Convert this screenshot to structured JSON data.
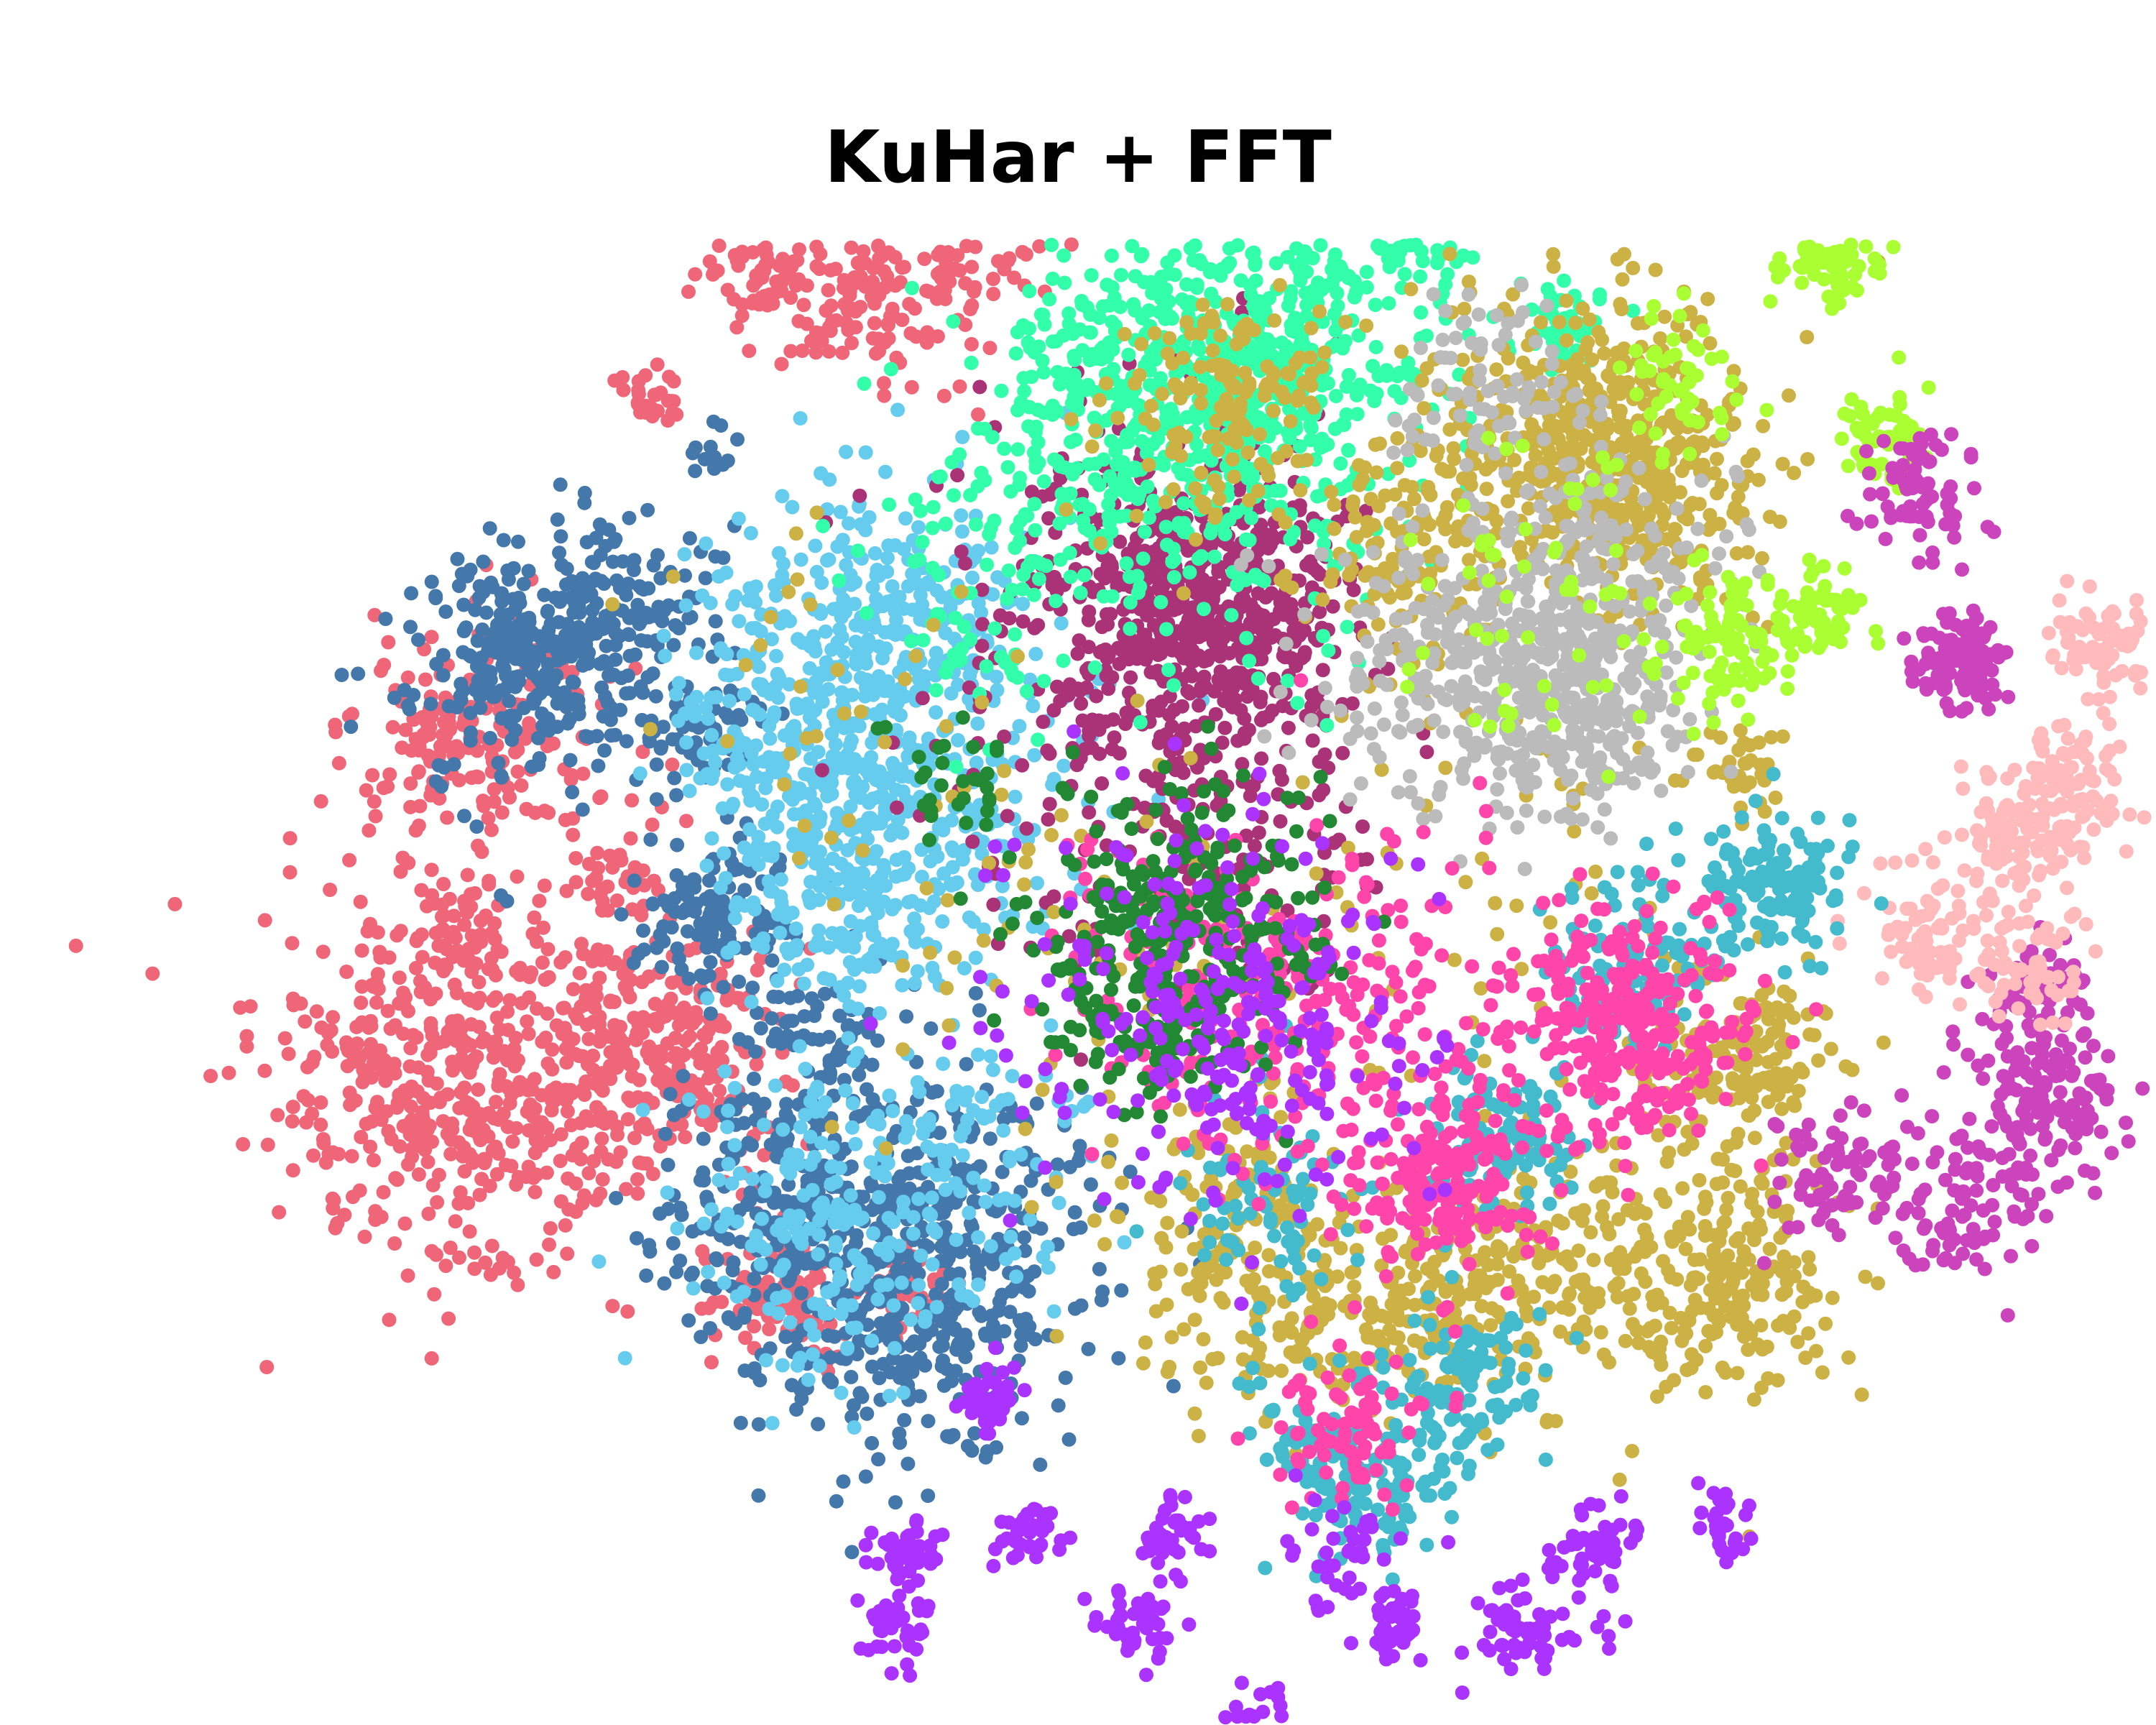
{
  "chart_data": {
    "type": "scatter",
    "title": "KuHar + FFT",
    "xlabel": "",
    "ylabel": "",
    "axes_visible": false,
    "grid": false,
    "legend": "none",
    "series": [
      {
        "color": "#EE6677",
        "clusters": [
          [
            -53,
            8,
            6,
            180
          ],
          [
            -56,
            -20,
            8,
            520
          ],
          [
            -38,
            -17,
            5,
            260
          ],
          [
            -20,
            47,
            4,
            120
          ],
          [
            -30,
            50,
            3,
            80
          ],
          [
            -12,
            51,
            3,
            60
          ],
          [
            -1,
            57,
            1.5,
            25
          ],
          [
            -42,
            -2,
            1.5,
            30
          ],
          [
            -55,
            -7,
            1.5,
            30
          ],
          [
            -57,
            10,
            1.5,
            25
          ],
          [
            -28,
            -38,
            3,
            90
          ],
          [
            -18,
            -38,
            2,
            50
          ],
          [
            -39,
            38,
            1.5,
            30
          ]
        ]
      },
      {
        "color": "#4477AA",
        "clusters": [
          [
            -50,
            16,
            5,
            260
          ],
          [
            -42,
            20,
            4,
            150
          ],
          [
            -34,
            -6,
            3,
            120
          ],
          [
            -17,
            -35,
            8,
            560
          ],
          [
            -30,
            -30,
            5,
            140
          ],
          [
            -25,
            -15,
            3,
            60
          ],
          [
            -35,
            10,
            3,
            60
          ],
          [
            -34,
            33,
            1,
            12
          ]
        ]
      },
      {
        "color": "#66CCEE",
        "clusters": [
          [
            -20,
            17,
            7,
            350
          ],
          [
            -18,
            2,
            7,
            300
          ],
          [
            -22,
            -32,
            7,
            240
          ],
          [
            -28,
            10,
            5,
            120
          ],
          [
            -25,
            -5,
            5,
            100
          ],
          [
            -10,
            -25,
            5,
            50
          ]
        ]
      },
      {
        "color": "#AA3377",
        "clusters": [
          [
            8,
            20,
            6,
            480
          ],
          [
            4,
            24,
            8,
            160
          ],
          [
            0,
            8,
            9,
            150
          ],
          [
            10,
            0,
            7,
            90
          ]
        ]
      },
      {
        "color": "#33FFAA",
        "clusters": [
          [
            7,
            40,
            8,
            420
          ],
          [
            -1,
            35,
            7,
            160
          ],
          [
            16,
            46,
            6,
            200
          ],
          [
            27,
            53,
            2.5,
            80
          ],
          [
            23,
            55,
            2,
            60
          ],
          [
            38,
            44,
            2,
            50
          ],
          [
            15,
            30,
            8,
            100
          ],
          [
            -10,
            22,
            6,
            80
          ]
        ]
      },
      {
        "color": "#CCB244",
        "clusters": [
          [
            38,
            35,
            7,
            400
          ],
          [
            45,
            30,
            5,
            200
          ],
          [
            10,
            37,
            5,
            150
          ],
          [
            25,
            25,
            4,
            120
          ],
          [
            53,
            -18,
            4,
            160
          ],
          [
            51,
            -36,
            5,
            220
          ],
          [
            36,
            -34,
            6,
            200
          ],
          [
            12,
            -35,
            6,
            220
          ],
          [
            25,
            -40,
            4,
            120
          ],
          [
            53,
            7,
            2,
            35
          ],
          [
            0,
            -10,
            10,
            60
          ],
          [
            -20,
            10,
            10,
            40
          ],
          [
            30,
            0,
            10,
            60
          ]
        ]
      },
      {
        "color": "#BBBBBB",
        "clusters": [
          [
            35,
            15,
            6,
            260
          ],
          [
            42,
            22,
            6,
            180
          ],
          [
            40,
            10,
            4,
            120
          ],
          [
            26,
            16,
            6,
            120
          ],
          [
            32,
            40,
            4,
            80
          ]
        ]
      },
      {
        "color": "#AAFF33",
        "clusters": [
          [
            61,
            50,
            2,
            70
          ],
          [
            65,
            35,
            2,
            60
          ],
          [
            60,
            20,
            2,
            60
          ],
          [
            52,
            18,
            3,
            80
          ],
          [
            48,
            40,
            3,
            50
          ],
          [
            38,
            20,
            8,
            70
          ]
        ]
      },
      {
        "color": "#CC44BB",
        "clusters": [
          [
            68,
            30,
            2.5,
            80
          ],
          [
            72,
            16,
            2,
            120
          ],
          [
            80,
            -21,
            3,
            130
          ],
          [
            78,
            -12,
            2.5,
            60
          ],
          [
            73,
            -30,
            3,
            90
          ],
          [
            62,
            -28,
            3,
            80
          ]
        ]
      },
      {
        "color": "#FFBBBB",
        "clusters": [
          [
            81,
            5,
            2.5,
            70
          ],
          [
            84,
            17,
            2.5,
            80
          ],
          [
            77,
            2,
            3,
            100
          ],
          [
            70,
            -7,
            3,
            80
          ],
          [
            78,
            -10,
            2.5,
            60
          ]
        ]
      },
      {
        "color": "#44BBCC",
        "clusters": [
          [
            56,
            -3,
            3,
            140
          ],
          [
            44,
            -10,
            4,
            120
          ],
          [
            33,
            -25,
            3,
            120
          ],
          [
            21,
            -52,
            4,
            160
          ],
          [
            13,
            -30,
            4,
            80
          ],
          [
            30,
            -45,
            4,
            100
          ]
        ]
      },
      {
        "color": "#FF44AA",
        "clusters": [
          [
            44,
            -15,
            5,
            320
          ],
          [
            28,
            -28,
            4,
            180
          ],
          [
            18,
            -14,
            7,
            220
          ],
          [
            20,
            -50,
            3,
            80
          ],
          [
            5,
            -10,
            6,
            60
          ]
        ]
      },
      {
        "color": "#228833",
        "clusters": [
          [
            6,
            -6,
            6,
            300
          ],
          [
            2,
            -15,
            4,
            80
          ],
          [
            -14,
            6,
            3,
            30
          ]
        ]
      },
      {
        "color": "#AA33FF",
        "clusters": [
          [
            11,
            -15,
            7,
            160
          ],
          [
            -10,
            -47,
            1.5,
            40
          ],
          [
            -17,
            -60,
            1.5,
            50
          ],
          [
            -7,
            -58,
            1.5,
            40
          ],
          [
            -18,
            -66,
            1.5,
            40
          ],
          [
            2,
            -66,
            1.5,
            40
          ],
          [
            12,
            -74,
            1.5,
            40
          ],
          [
            24,
            -66,
            1.5,
            40
          ],
          [
            34,
            -67,
            1.5,
            40
          ],
          [
            41,
            -59,
            1.5,
            40
          ],
          [
            52,
            -57,
            1.5,
            30
          ],
          [
            5,
            -58,
            1.5,
            40
          ],
          [
            20,
            -60,
            3,
            40
          ],
          [
            38,
            -65,
            3,
            30
          ],
          [
            6,
            -12,
            10,
            120
          ]
        ]
      }
    ]
  }
}
